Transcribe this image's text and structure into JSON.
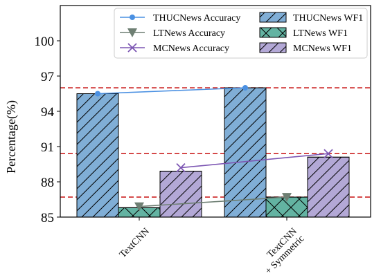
{
  "chart_data": {
    "type": "bar",
    "categories": [
      "TextCNN",
      "TextCNN\n+ Symmetric"
    ],
    "ylabel": "Percentage(%)",
    "xlabel": "",
    "ylim": [
      85,
      103
    ],
    "yticks": [
      85,
      88,
      91,
      94,
      97,
      100
    ],
    "grid": false,
    "legend_position": "top-right",
    "bar_series": [
      {
        "name": "THUCNews WF1",
        "values": [
          95.5,
          96.0
        ],
        "color": "#80aed6",
        "hatch": "diagonal"
      },
      {
        "name": "LTNews WF1",
        "values": [
          85.8,
          86.7
        ],
        "color": "#63b3a2",
        "hatch": "cross"
      },
      {
        "name": "MCNews WF1",
        "values": [
          88.9,
          90.1
        ],
        "color": "#b3a8d6",
        "hatch": "diagonal"
      }
    ],
    "line_series": [
      {
        "name": "THUCNews Accuracy",
        "values": [
          95.5,
          96.0
        ],
        "color": "#4a90e2",
        "marker": "circle"
      },
      {
        "name": "LTNews Accuracy",
        "values": [
          85.9,
          86.7
        ],
        "color": "#6e7f73",
        "marker": "triangle-down"
      },
      {
        "name": "MCNews Accuracy",
        "values": [
          89.2,
          90.4
        ],
        "color": "#7d57b3",
        "marker": "x"
      }
    ],
    "reference_lines": [
      {
        "value": 96.0,
        "color": "#cc2222",
        "style": "dashed"
      },
      {
        "value": 90.4,
        "color": "#cc2222",
        "style": "dashed"
      },
      {
        "value": 86.7,
        "color": "#cc2222",
        "style": "dashed"
      }
    ]
  }
}
